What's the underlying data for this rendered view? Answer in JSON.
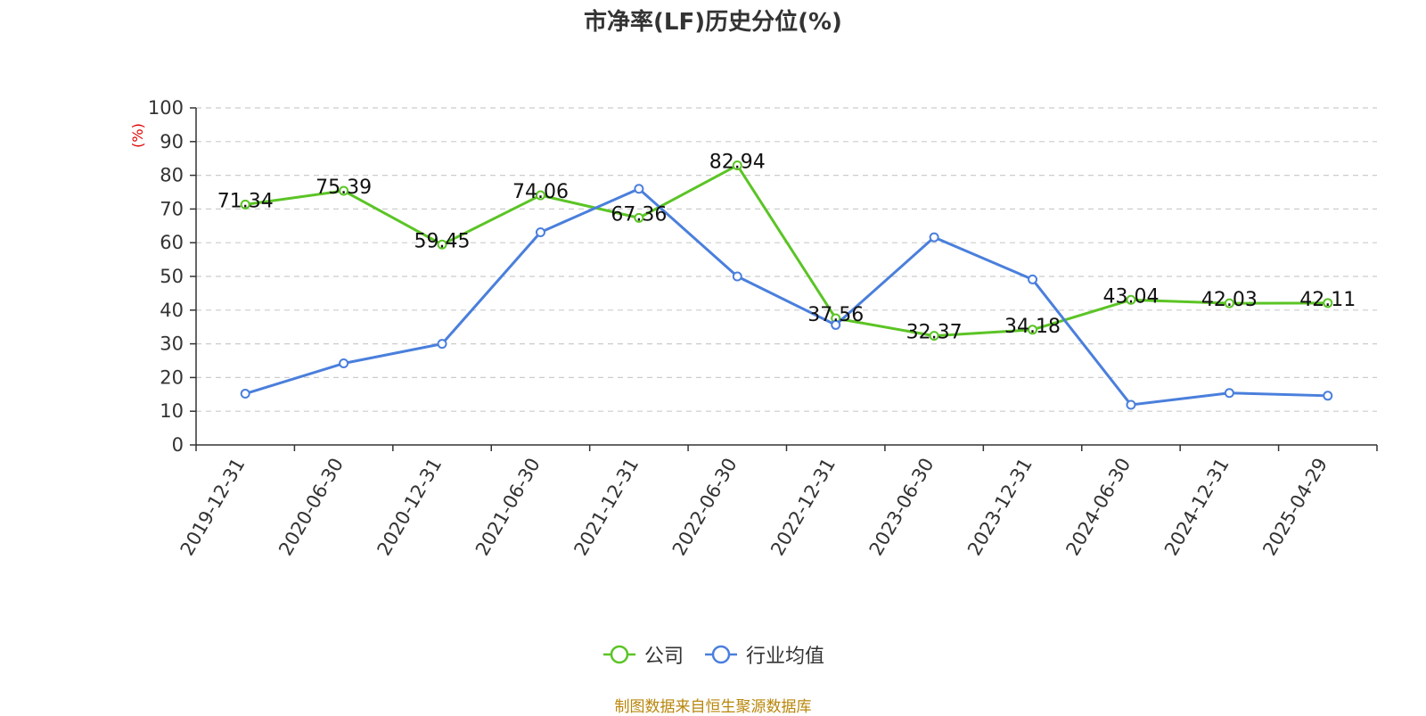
{
  "chart_data": {
    "type": "line",
    "title": "市净率(LF)历史分位(%)",
    "ylabel": "(%)",
    "categories": [
      "2019-12-31",
      "2020-06-30",
      "2020-12-31",
      "2021-06-30",
      "2021-12-31",
      "2022-06-30",
      "2022-12-31",
      "2023-06-30",
      "2023-12-31",
      "2024-06-30",
      "2024-12-31",
      "2025-04-29"
    ],
    "ylim": [
      0,
      100
    ],
    "yticks": [
      0,
      10,
      20,
      30,
      40,
      50,
      60,
      70,
      80,
      90,
      100
    ],
    "grid": true,
    "legend_position": "bottom",
    "series": [
      {
        "name": "公司",
        "color": "#5bc425",
        "show_labels": true,
        "values": [
          71.34,
          75.39,
          59.45,
          74.06,
          67.36,
          82.94,
          37.56,
          32.37,
          34.18,
          43.04,
          42.03,
          42.11
        ]
      },
      {
        "name": "行业均值",
        "color": "#4a7fdc",
        "show_labels": false,
        "values": [
          15.2,
          24.2,
          30.0,
          63.1,
          76.0,
          50.0,
          35.6,
          61.6,
          49.1,
          11.9,
          15.4,
          14.6
        ]
      }
    ]
  },
  "source_note": "制图数据来自恒生聚源数据库"
}
